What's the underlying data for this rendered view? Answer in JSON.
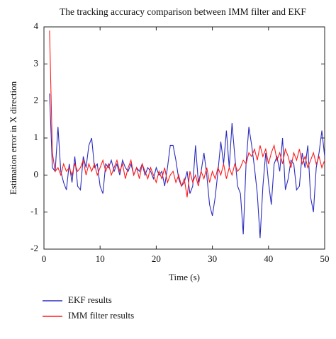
{
  "chart_data": {
    "type": "line",
    "title": "The tracking accuracy comparison between IMM filter and EKF",
    "x_label": "Time (s)",
    "y_label": "Estimation error in X direction",
    "x": [
      1,
      1.5,
      2,
      2.5,
      3,
      3.5,
      4,
      4.5,
      5,
      5.5,
      6,
      6.5,
      7,
      7.5,
      8,
      8.5,
      9,
      9.5,
      10,
      10.5,
      11,
      11.5,
      12,
      12.5,
      13,
      13.5,
      14,
      14.5,
      15,
      15.5,
      16,
      16.5,
      17,
      17.5,
      18,
      18.5,
      19,
      19.5,
      20,
      20.5,
      21,
      21.5,
      22,
      22.5,
      23,
      23.5,
      24,
      24.5,
      25,
      25.5,
      26,
      26.5,
      27,
      27.5,
      28,
      28.5,
      29,
      29.5,
      30,
      30.5,
      31,
      31.5,
      32,
      32.5,
      33,
      33.5,
      34,
      34.5,
      35,
      35.5,
      36,
      36.5,
      37,
      37.5,
      38,
      38.5,
      39,
      39.5,
      40,
      40.5,
      41,
      41.5,
      42,
      42.5,
      43,
      43.5,
      44,
      44.5,
      45,
      45.5,
      46,
      46.5,
      47,
      47.5,
      48,
      48.5,
      49,
      49.5,
      50
    ],
    "series": [
      {
        "name": "EKF results",
        "color": "#2b2bbf",
        "values": [
          2.2,
          0.2,
          0.1,
          1.3,
          0.1,
          -0.2,
          -0.4,
          0.3,
          -0.2,
          0.5,
          -0.3,
          -0.4,
          0.5,
          0.2,
          0.8,
          1.0,
          0.2,
          0.3,
          -0.3,
          -0.5,
          0.3,
          0.2,
          0.4,
          0.1,
          0.3,
          0.0,
          0.4,
          0.2,
          0.1,
          0.3,
          0.0,
          0.2,
          0.1,
          0.3,
          0.0,
          0.2,
          0.1,
          -0.1,
          0.2,
          0.0,
          0.1,
          -0.3,
          0.2,
          0.8,
          0.8,
          0.4,
          -0.1,
          -0.3,
          -0.2,
          0.1,
          -0.5,
          -0.3,
          0.8,
          -0.2,
          0.1,
          0.6,
          0.0,
          -0.8,
          -1.1,
          -0.6,
          0.1,
          0.9,
          0.3,
          1.2,
          0.2,
          1.4,
          0.5,
          -0.3,
          -0.5,
          -1.6,
          0.3,
          1.3,
          0.8,
          0.2,
          -0.5,
          -1.7,
          -0.3,
          0.6,
          -0.2,
          -0.8,
          0.3,
          0.5,
          0.1,
          1.0,
          -0.4,
          -0.1,
          0.4,
          0.3,
          -0.4,
          -0.3,
          0.6,
          0.2,
          0.8,
          -0.6,
          -1.0,
          0.2,
          0.6,
          1.2,
          0.5
        ]
      },
      {
        "name": "IMM filter results",
        "color": "#ff1a1a",
        "values": [
          3.9,
          0.6,
          0.1,
          0.2,
          0.0,
          0.3,
          0.1,
          0.2,
          0.0,
          0.3,
          0.1,
          0.2,
          0.4,
          0.0,
          0.3,
          0.1,
          0.3,
          0.0,
          0.2,
          0.4,
          0.1,
          0.3,
          0.0,
          0.2,
          0.4,
          0.1,
          0.3,
          -0.1,
          0.2,
          0.4,
          0.0,
          0.2,
          -0.1,
          0.3,
          0.1,
          -0.1,
          0.2,
          0.0,
          -0.2,
          0.1,
          -0.1,
          0.2,
          -0.2,
          0.0,
          0.1,
          -0.2,
          0.0,
          -0.3,
          -0.1,
          -0.6,
          0.1,
          -0.2,
          0.0,
          -0.3,
          0.1,
          -0.1,
          0.2,
          -0.2,
          0.1,
          -0.1,
          0.2,
          0.0,
          0.3,
          -0.1,
          0.2,
          0.0,
          0.3,
          0.1,
          0.2,
          0.4,
          0.3,
          0.6,
          0.5,
          0.7,
          0.4,
          0.8,
          0.5,
          0.7,
          0.3,
          0.6,
          0.8,
          0.4,
          0.6,
          0.3,
          0.7,
          0.5,
          0.2,
          0.6,
          0.4,
          0.7,
          0.3,
          0.5,
          0.2,
          0.4,
          0.6,
          0.3,
          0.5,
          0.2,
          0.4
        ]
      }
    ],
    "xlim": [
      0,
      50
    ],
    "xticks": [
      0,
      10,
      20,
      30,
      40,
      50
    ],
    "ylim": [
      -2,
      4
    ],
    "yticks": [
      -2,
      -1,
      0,
      1,
      2,
      3,
      4
    ],
    "grid": false,
    "legend": "bottom"
  }
}
